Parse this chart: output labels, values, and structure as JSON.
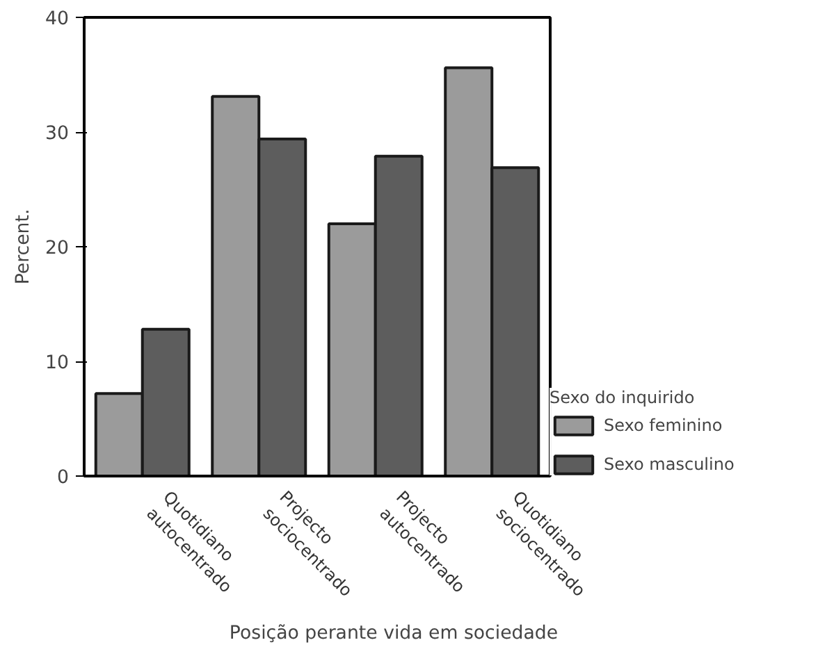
{
  "chart_data": {
    "type": "bar",
    "xlabel": "Posição perante vida em sociedade",
    "ylabel": "Percent.",
    "legend_title": "Sexo do inquirido",
    "categories": [
      "Quotidiano\nautocentrado",
      "Projecto\nsociocentrado",
      "Projecto\nautocentrado",
      "Quotidiano\nsociocentrado"
    ],
    "series": [
      {
        "name": "Sexo feminino",
        "color": "#9b9b9b",
        "values": [
          7.2,
          33.1,
          22.0,
          35.6
        ]
      },
      {
        "name": "Sexo masculino",
        "color": "#5d5d5d",
        "values": [
          12.8,
          29.4,
          27.9,
          26.9
        ]
      }
    ],
    "ylim": [
      0,
      40
    ],
    "yticks": [
      0,
      10,
      20,
      30,
      40
    ],
    "grid": false,
    "legend": "right"
  }
}
